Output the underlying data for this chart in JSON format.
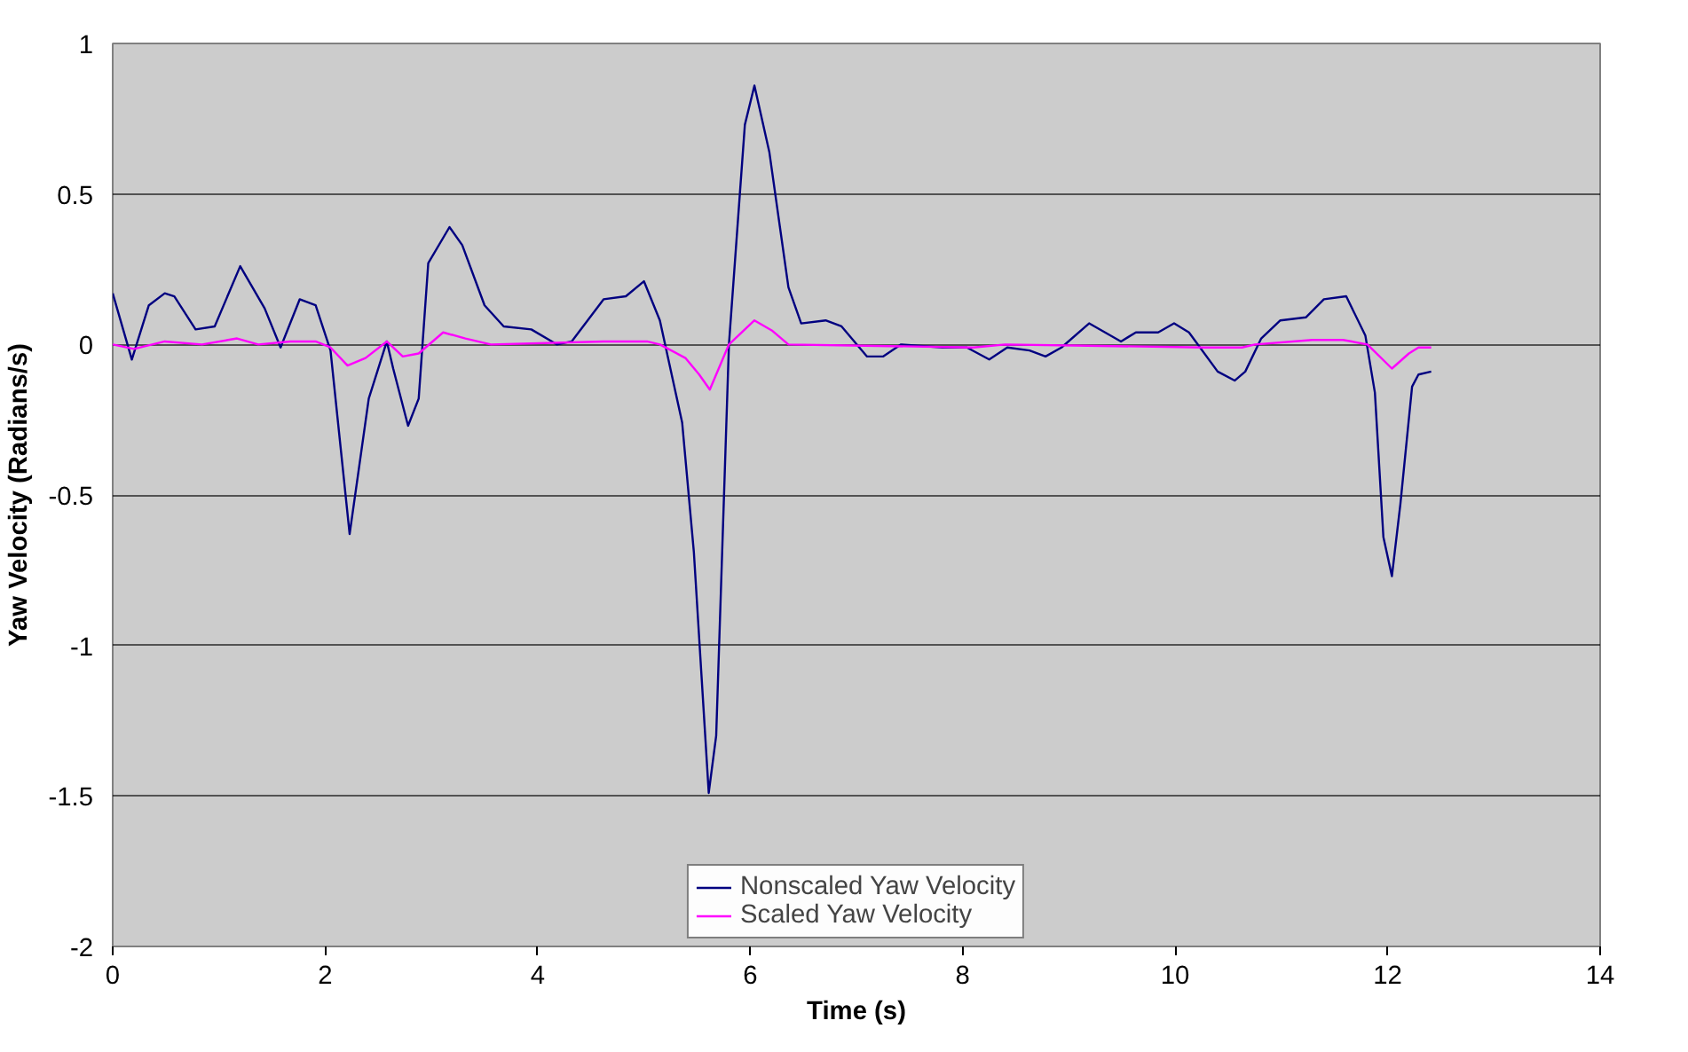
{
  "chart_data": {
    "type": "line",
    "xlabel": "Time (s)",
    "ylabel": "Yaw Velocity (Radians/s)",
    "xlim": [
      0,
      14
    ],
    "xticks": [
      0,
      2,
      4,
      6,
      8,
      10,
      12,
      14
    ],
    "ylim": [
      -2,
      1
    ],
    "yticks": [
      -2,
      -1.5,
      -1,
      -0.5,
      0,
      0.5,
      1
    ],
    "grid": "y",
    "legend": "bottom",
    "line_style": "solid",
    "marker": "none",
    "series": [
      {
        "name": "Nonscaled Yaw Velocity",
        "color": "#000080",
        "x": [
          0,
          0.18,
          0.34,
          0.49,
          0.58,
          0.78,
          0.96,
          1.2,
          1.43,
          1.58,
          1.76,
          1.91,
          2.05,
          2.23,
          2.41,
          2.58,
          2.64,
          2.78,
          2.88,
          2.97,
          3.17,
          3.29,
          3.5,
          3.68,
          3.94,
          4.18,
          4.32,
          4.62,
          4.83,
          5.0,
          5.15,
          5.36,
          5.47,
          5.61,
          5.68,
          5.8,
          5.95,
          6.04,
          6.18,
          6.36,
          6.48,
          6.71,
          6.86,
          7.1,
          7.25,
          7.42,
          7.81,
          8.04,
          8.25,
          8.42,
          8.63,
          8.78,
          8.93,
          9.19,
          9.34,
          9.49,
          9.63,
          9.84,
          9.99,
          10.13,
          10.4,
          10.56,
          10.66,
          10.81,
          10.99,
          11.23,
          11.4,
          11.61,
          11.79,
          11.88,
          11.96,
          12.04,
          12.12,
          12.23,
          12.29,
          12.41
        ],
        "values": [
          0.17,
          -0.05,
          0.13,
          0.17,
          0.16,
          0.05,
          0.06,
          0.26,
          0.12,
          -0.01,
          0.15,
          0.13,
          -0.02,
          -0.63,
          -0.18,
          0.01,
          -0.08,
          -0.27,
          -0.18,
          0.27,
          0.39,
          0.33,
          0.13,
          0.06,
          0.05,
          0.0,
          0.01,
          0.15,
          0.16,
          0.21,
          0.08,
          -0.26,
          -0.69,
          -1.49,
          -1.3,
          0.0,
          0.73,
          0.86,
          0.64,
          0.19,
          0.07,
          0.08,
          0.06,
          -0.04,
          -0.04,
          0.0,
          -0.01,
          -0.01,
          -0.05,
          -0.01,
          -0.02,
          -0.04,
          -0.01,
          0.07,
          0.04,
          0.01,
          0.04,
          0.04,
          0.07,
          0.04,
          -0.09,
          -0.12,
          -0.09,
          0.02,
          0.08,
          0.09,
          0.15,
          0.16,
          0.03,
          -0.16,
          -0.64,
          -0.77,
          -0.53,
          -0.14,
          -0.1,
          -0.09
        ]
      },
      {
        "name": "Scaled Yaw Velocity",
        "color": "#ff00ff",
        "x": [
          0,
          0.2,
          0.49,
          0.84,
          1.17,
          1.37,
          1.67,
          1.91,
          2.05,
          2.21,
          2.38,
          2.58,
          2.73,
          2.88,
          3.11,
          3.32,
          3.56,
          4.62,
          5.03,
          5.15,
          5.39,
          5.52,
          5.62,
          5.8,
          6.04,
          6.21,
          6.36,
          8.1,
          8.4,
          10.28,
          10.63,
          10.75,
          11.29,
          11.58,
          11.81,
          12.04,
          12.2,
          12.29,
          12.41
        ],
        "values": [
          0,
          -0.015,
          0.01,
          0,
          0.02,
          0,
          0.01,
          0.01,
          -0.01,
          -0.07,
          -0.045,
          0.01,
          -0.04,
          -0.03,
          0.04,
          0.02,
          0,
          0.01,
          0.01,
          0,
          -0.045,
          -0.1,
          -0.15,
          0,
          0.08,
          0.045,
          0,
          -0.01,
          0,
          -0.01,
          -0.01,
          0,
          0.015,
          0.015,
          0,
          -0.08,
          -0.03,
          -0.01,
          -0.01
        ]
      }
    ]
  }
}
